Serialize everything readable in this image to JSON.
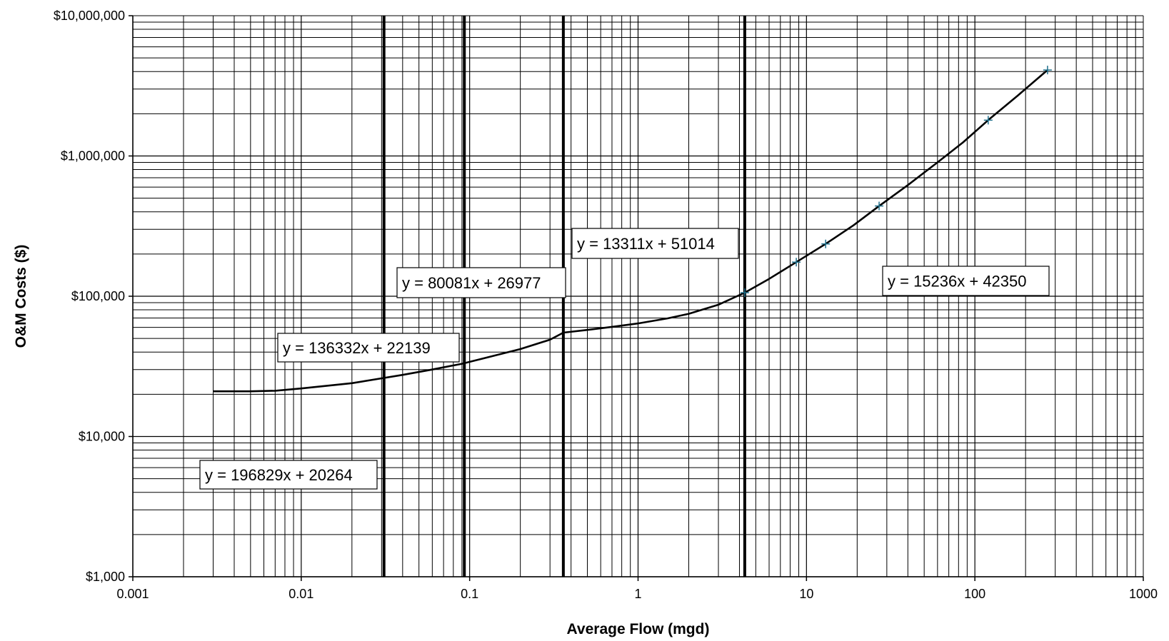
{
  "chart_data": {
    "type": "line",
    "title": "",
    "xlabel": "Average Flow (mgd)",
    "ylabel": "O&M Costs ($)",
    "x_scale": "log",
    "y_scale": "log",
    "xlim": [
      0.001,
      1000
    ],
    "ylim": [
      1000,
      10000000
    ],
    "grid": true,
    "x_ticks": [
      "0.001",
      "0.01",
      "0.1",
      "1",
      "10",
      "100",
      "1000"
    ],
    "y_ticks": [
      "$1,000",
      "$10,000",
      "$100,000",
      "$1,000,000",
      "$10,000,000"
    ],
    "series": [
      {
        "line_style": "solid-black",
        "x": [
          0.003,
          0.005,
          0.007,
          0.01,
          0.02,
          0.03,
          0.04,
          0.06,
          0.09,
          0.12,
          0.2,
          0.3,
          0.36,
          0.5,
          0.7,
          1,
          1.5,
          2,
          3,
          4.3,
          6,
          8.7,
          13,
          19,
          27,
          40,
          60,
          85,
          120,
          180,
          270
        ],
        "y": [
          21000,
          21000,
          21200,
          22000,
          24000,
          26000,
          27500,
          30000,
          33000,
          36000,
          42000,
          49000,
          55000,
          57500,
          60500,
          64000,
          69500,
          75000,
          87000,
          106000,
          133000,
          175000,
          236000,
          320000,
          440000,
          620000,
          900000,
          1250000,
          1800000,
          2700000,
          4100000
        ]
      }
    ],
    "markers": {
      "symbol": "+",
      "color": "#1f6f8b",
      "x": [
        4.3,
        8.7,
        13,
        27,
        120,
        270
      ],
      "y": [
        106000,
        175000,
        236000,
        440000,
        1800000,
        4100000
      ]
    },
    "range_boundaries_x": [
      0.031,
      0.093,
      0.36,
      4.3
    ],
    "annotations": [
      {
        "text": "y = 196829x + 20264"
      },
      {
        "text": "y = 136332x + 22139"
      },
      {
        "text": "y = 80081x + 26977"
      },
      {
        "text": "y = 13311x + 51014"
      },
      {
        "text": "y = 15236x + 42350"
      }
    ]
  }
}
